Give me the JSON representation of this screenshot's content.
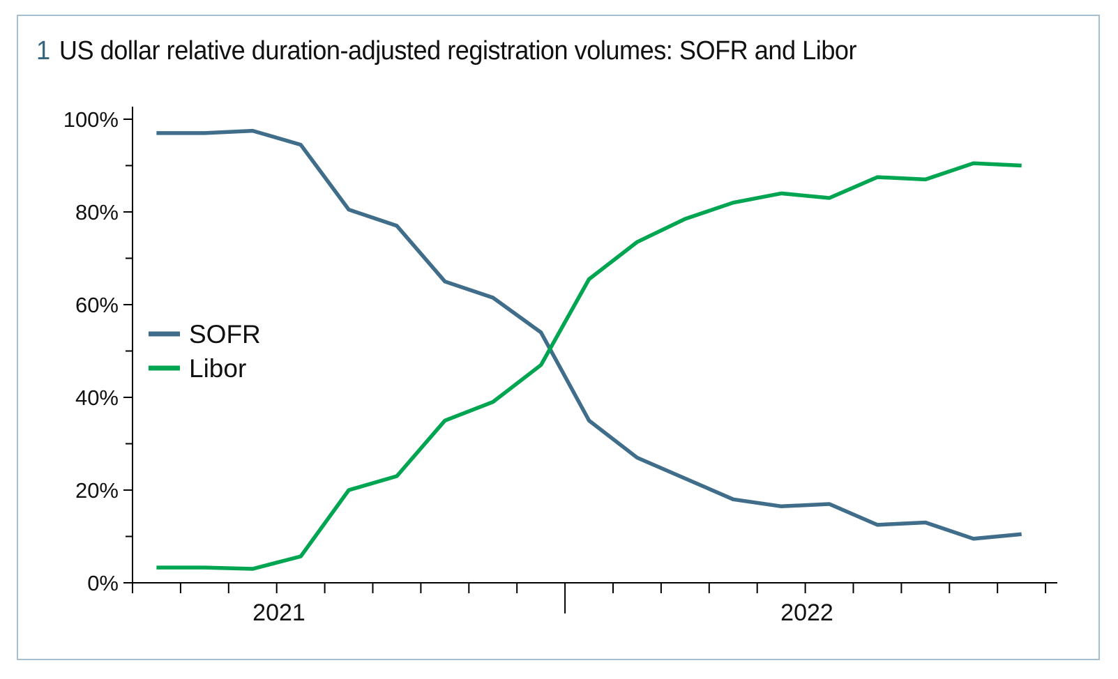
{
  "chart": {
    "number": "1",
    "title": "US dollar relative duration-adjusted registration volumes: SOFR and Libor"
  },
  "chart_data": {
    "type": "line",
    "figure_number": "1",
    "title": "US dollar relative duration-adjusted registration volumes: SOFR and Libor",
    "ylabel": "",
    "xlabel": "",
    "y_axis": {
      "unit": "%",
      "range": [
        0,
        100
      ],
      "major_tick_step": 20,
      "minor_tick_step": 10,
      "tick_labels": [
        "0%",
        "20%",
        "40%",
        "60%",
        "80%",
        "100%"
      ]
    },
    "x_axis": {
      "year_labels": [
        "2021",
        "2022"
      ],
      "n_points": 19,
      "points_per_tick": 1,
      "year_divider_after_point": 9,
      "note_points_are_monthly": true
    },
    "legend": {
      "position": "middle-left",
      "entries": [
        "SOFR",
        "Libor"
      ]
    },
    "series": [
      {
        "name": "SOFR",
        "color": "#3f6d8a",
        "values": [
          97,
          97,
          97.5,
          94.5,
          80.5,
          77,
          65,
          61.5,
          54,
          35,
          27,
          22.5,
          18,
          16.5,
          17,
          12.5,
          13,
          9.5,
          10.5
        ]
      },
      {
        "name": "Libor",
        "color": "#00a551",
        "values": [
          3.3,
          3.3,
          3.0,
          5.7,
          20,
          23,
          35,
          39,
          47,
          65.5,
          73.5,
          78.5,
          82,
          84,
          83,
          87.5,
          87,
          90.5,
          90
        ]
      }
    ]
  },
  "colors": {
    "axis": "#000000",
    "border": "#a6bed2",
    "figure_number": "#33657f",
    "title_text": "#111111"
  }
}
